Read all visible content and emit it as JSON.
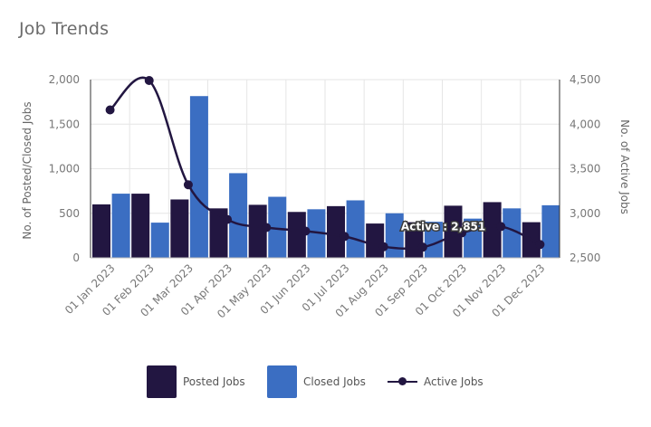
{
  "card": {
    "title": "Job Trends"
  },
  "colors": {
    "posted": "#221641",
    "closed": "#3b6ec2",
    "active": "#221641",
    "grid": "#e6e6e6",
    "axis": "#777777"
  },
  "legend": [
    {
      "label": "Posted Jobs",
      "type": "box",
      "color": "#221641"
    },
    {
      "label": "Closed Jobs",
      "type": "box",
      "color": "#3b6ec2"
    },
    {
      "label": "Active Jobs",
      "type": "line",
      "color": "#221641"
    }
  ],
  "tooltip": {
    "series": "Active",
    "value": "2,851",
    "month_index": 10
  },
  "chart_data": {
    "type": "bar",
    "title": "Job Trends",
    "categories": [
      "01 Jan 2023",
      "01 Feb 2023",
      "01 Mar 2023",
      "01 Apr 2023",
      "01 May 2023",
      "01 Jun 2023",
      "01 Jul 2023",
      "01 Aug 2023",
      "01 Sep 2023",
      "01 Oct 2023",
      "01 Nov 2023",
      "01 Dec 2023"
    ],
    "ylabel": "No. of Posted/Closed Jobs",
    "ylabel_right": "No. of Active Jobs",
    "ylim": [
      0,
      2000
    ],
    "ylim_right": [
      2500,
      4500
    ],
    "yticks": [
      "0",
      "500",
      "1,000",
      "1,500",
      "2,000"
    ],
    "yticks_right": [
      "2,500",
      "3,000",
      "3,500",
      "4,000",
      "4,500"
    ],
    "series": [
      {
        "name": "Posted Jobs",
        "type": "bar",
        "axis": "left",
        "values": [
          600,
          720,
          655,
          555,
          595,
          515,
          580,
          385,
          400,
          585,
          625,
          400
        ]
      },
      {
        "name": "Closed Jobs",
        "type": "bar",
        "axis": "left",
        "values": [
          720,
          395,
          1815,
          950,
          685,
          545,
          645,
          500,
          405,
          440,
          555,
          590
        ]
      },
      {
        "name": "Active Jobs",
        "type": "line",
        "axis": "right",
        "values": [
          4160,
          4490,
          3320,
          2930,
          2840,
          2800,
          2740,
          2625,
          2620,
          2780,
          2851,
          2650
        ]
      }
    ],
    "grid": true,
    "legend_position": "bottom"
  }
}
